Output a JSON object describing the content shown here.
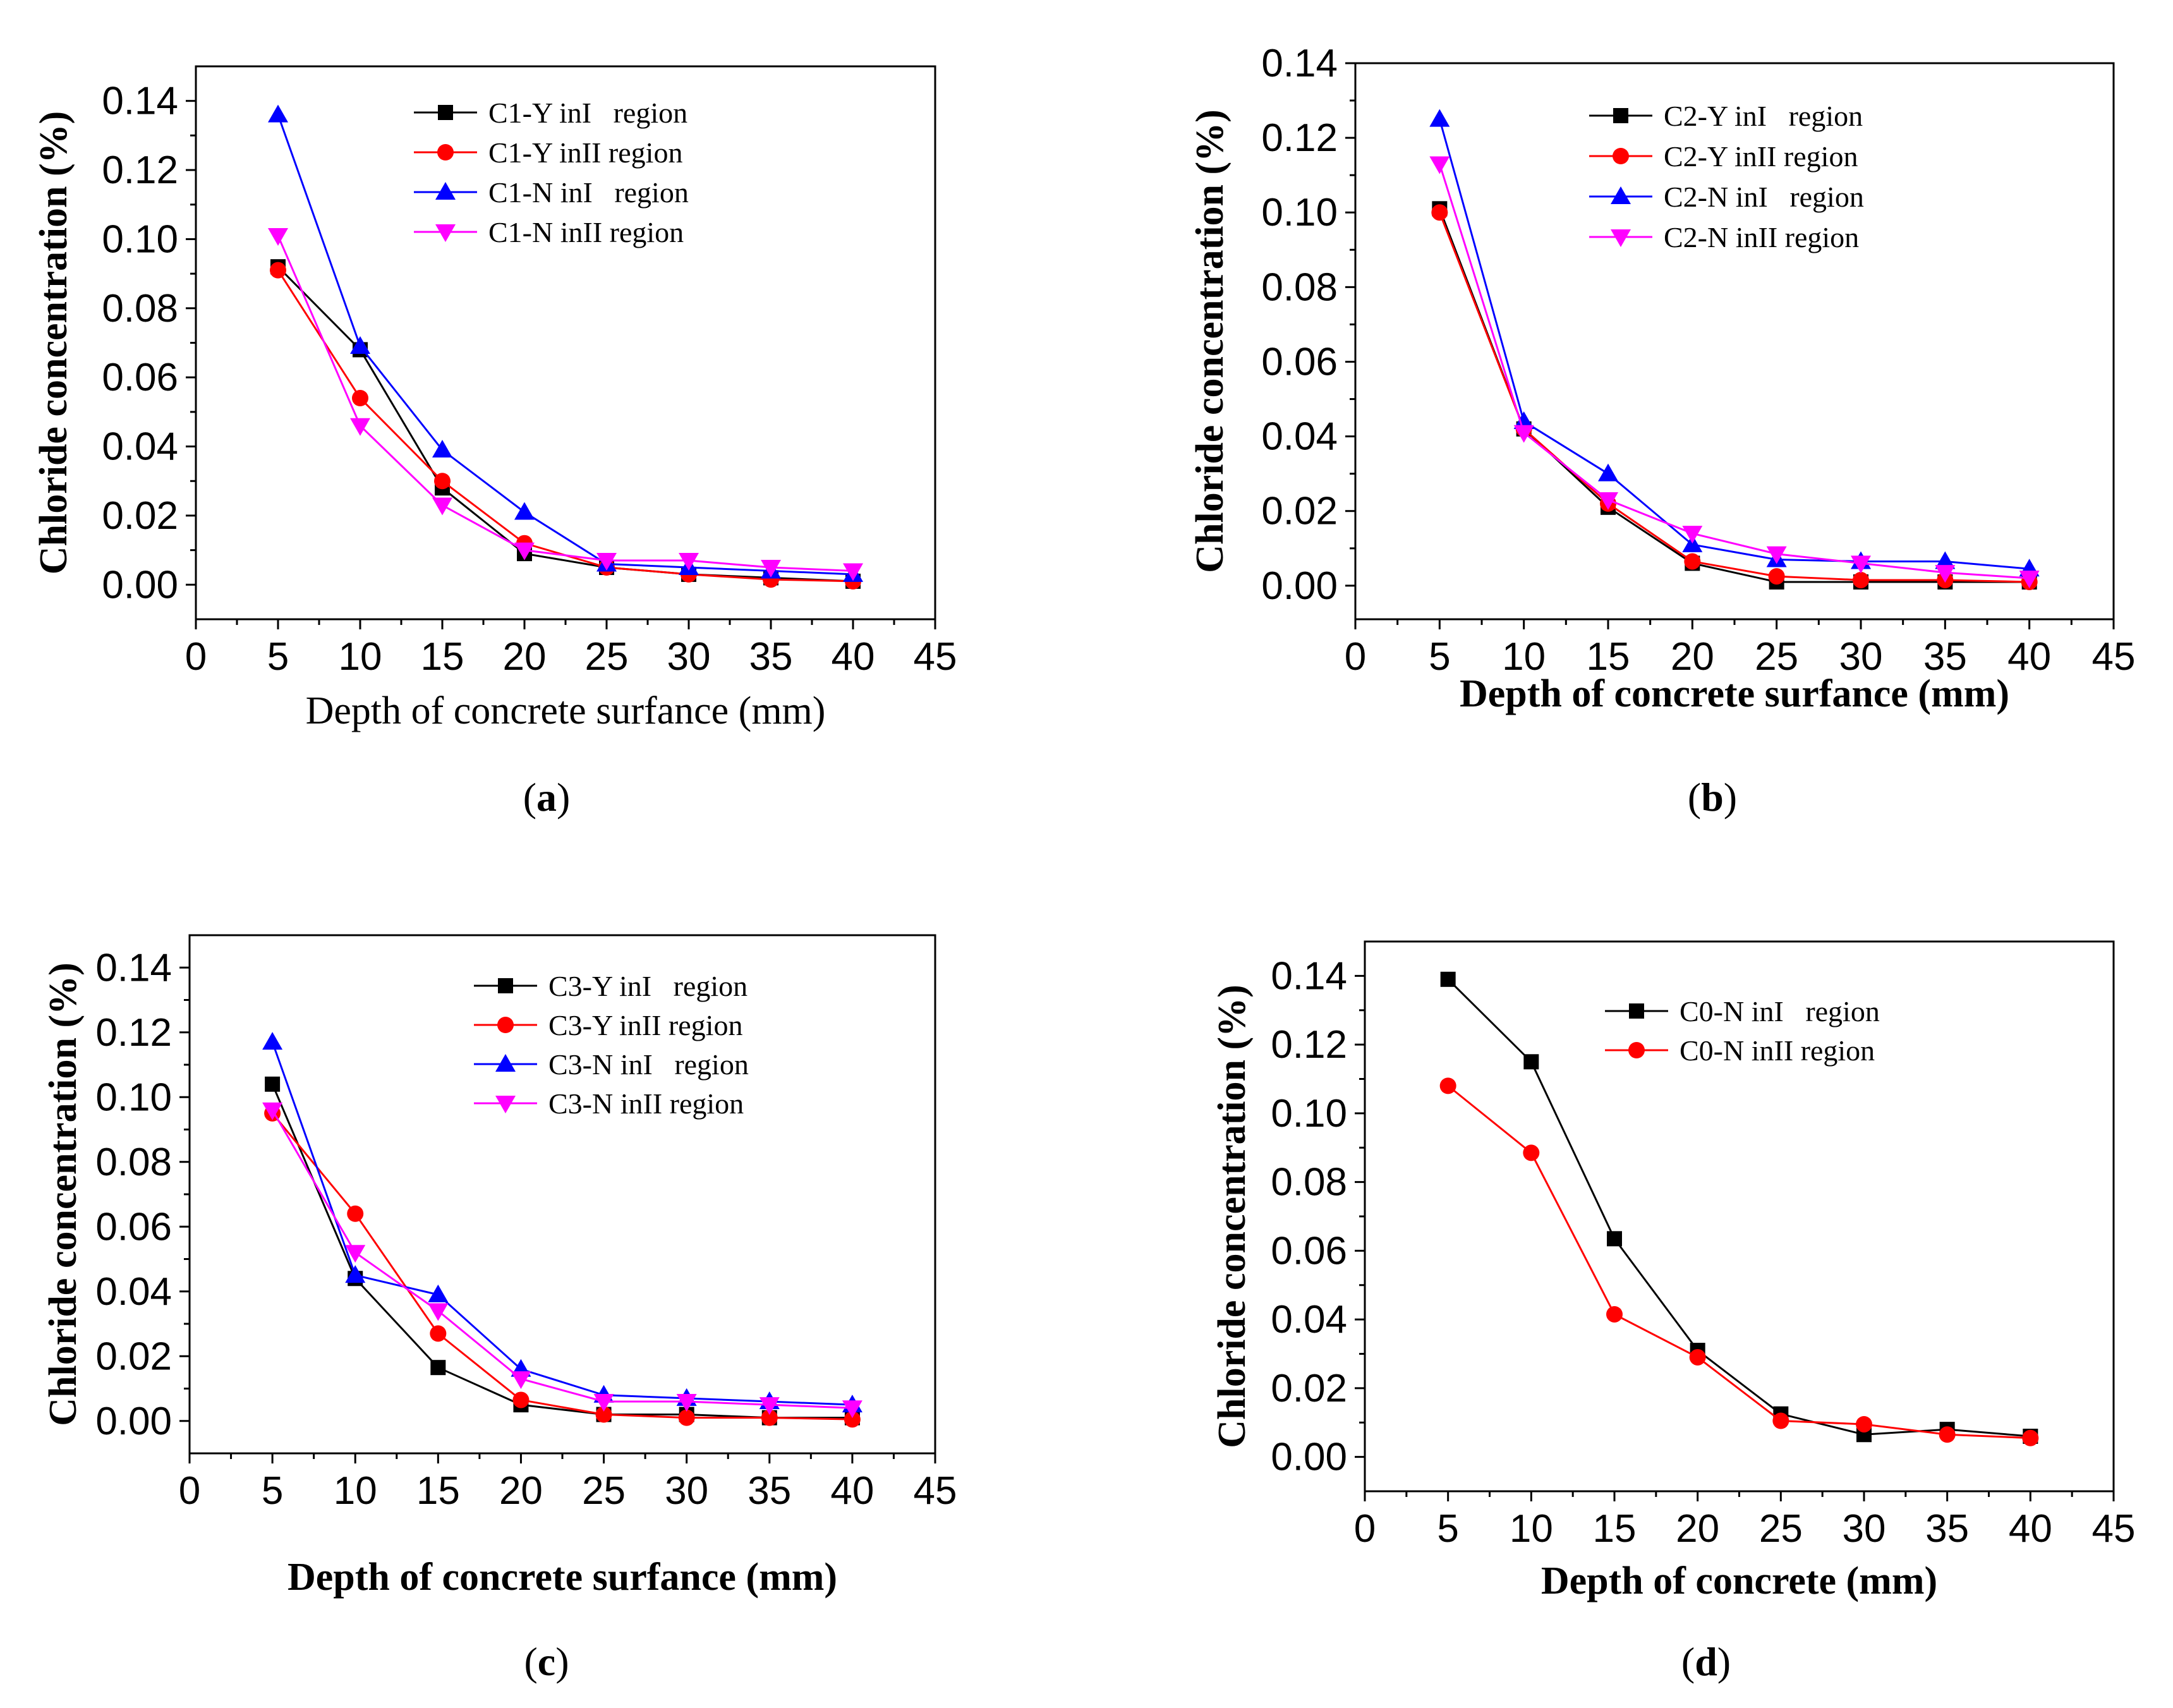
{
  "chart_data": [
    {
      "id": "a",
      "type": "line",
      "caption": "a",
      "xlabel": "Depth of concrete surfance (mm)",
      "ylabel": "Chloride concentration (%)",
      "xticks": [
        "0",
        "5",
        "10",
        "15",
        "20",
        "25",
        "30",
        "35",
        "40",
        "45"
      ],
      "yticks": [
        "0.00",
        "0.02",
        "0.04",
        "0.06",
        "0.08",
        "0.10",
        "0.12",
        "0.14"
      ],
      "xlim": [
        0,
        45
      ],
      "ylim": [
        -0.01,
        0.15
      ],
      "legend_position": "top-center",
      "x": [
        5,
        10,
        15,
        20,
        25,
        30,
        35,
        40
      ],
      "series": [
        {
          "name": "C1-Y inI   region",
          "color": "#000000",
          "marker": "square",
          "values": [
            0.092,
            0.068,
            0.028,
            0.009,
            0.005,
            0.003,
            0.002,
            0.001
          ]
        },
        {
          "name": "C1-Y inII region",
          "color": "#ff0000",
          "marker": "circle",
          "values": [
            0.091,
            0.054,
            0.03,
            0.012,
            0.005,
            0.003,
            0.0015,
            0.001
          ]
        },
        {
          "name": "C1-N inI   region",
          "color": "#0000ff",
          "marker": "triangle-up",
          "values": [
            0.136,
            0.069,
            0.039,
            0.021,
            0.006,
            0.005,
            0.004,
            0.003
          ]
        },
        {
          "name": "C1-N inII region",
          "color": "#ff00ff",
          "marker": "triangle-down",
          "values": [
            0.101,
            0.046,
            0.023,
            0.01,
            0.007,
            0.007,
            0.005,
            0.004
          ]
        }
      ]
    },
    {
      "id": "b",
      "type": "line",
      "caption": "b",
      "xlabel": "Depth of concrete surfance (mm)",
      "ylabel": "Chloride concentration (%)",
      "xticks": [
        "0",
        "5",
        "10",
        "15",
        "20",
        "25",
        "30",
        "35",
        "40",
        "45"
      ],
      "yticks": [
        "0.00",
        "0.02",
        "0.04",
        "0.06",
        "0.08",
        "0.10",
        "0.12",
        "0.14"
      ],
      "xlim": [
        0,
        45
      ],
      "ylim": [
        -0.009,
        0.14
      ],
      "legend_position": "top-center",
      "x": [
        5,
        10,
        15,
        20,
        25,
        30,
        35,
        40
      ],
      "series": [
        {
          "name": "C2-Y inI   region",
          "color": "#000000",
          "marker": "square",
          "values": [
            0.101,
            0.042,
            0.021,
            0.006,
            0.001,
            0.001,
            0.001,
            0.001
          ]
        },
        {
          "name": "C2-Y inII region",
          "color": "#ff0000",
          "marker": "circle",
          "values": [
            0.1,
            0.042,
            0.022,
            0.0065,
            0.0025,
            0.0015,
            0.0015,
            0.001
          ]
        },
        {
          "name": "C2-N inI   region",
          "color": "#0000ff",
          "marker": "triangle-up",
          "values": [
            0.125,
            0.044,
            0.03,
            0.011,
            0.007,
            0.0065,
            0.0065,
            0.0045
          ]
        },
        {
          "name": "C2-N inII region",
          "color": "#ff00ff",
          "marker": "triangle-down",
          "values": [
            0.113,
            0.041,
            0.023,
            0.014,
            0.0085,
            0.006,
            0.0035,
            0.002
          ]
        }
      ]
    },
    {
      "id": "c",
      "type": "line",
      "caption": "c",
      "xlabel": "Depth of concrete surfance (mm)",
      "ylabel": "Chloride concentration (%)",
      "xticks": [
        "0",
        "5",
        "10",
        "15",
        "20",
        "25",
        "30",
        "35",
        "40",
        "45"
      ],
      "yticks": [
        "0.00",
        "0.02",
        "0.04",
        "0.06",
        "0.08",
        "0.10",
        "0.12",
        "0.14"
      ],
      "xlim": [
        0,
        45
      ],
      "ylim": [
        -0.01,
        0.15
      ],
      "legend_position": "top-center",
      "x": [
        5,
        10,
        15,
        20,
        25,
        30,
        35,
        40
      ],
      "series": [
        {
          "name": "C3-Y inI   region",
          "color": "#000000",
          "marker": "square",
          "values": [
            0.104,
            0.044,
            0.0165,
            0.005,
            0.002,
            0.002,
            0.001,
            0.001
          ]
        },
        {
          "name": "C3-Y inII region",
          "color": "#ff0000",
          "marker": "circle",
          "values": [
            0.095,
            0.064,
            0.027,
            0.0065,
            0.002,
            0.001,
            0.001,
            0.0005
          ]
        },
        {
          "name": "C3-N inI   region",
          "color": "#0000ff",
          "marker": "triangle-up",
          "values": [
            0.117,
            0.045,
            0.039,
            0.016,
            0.008,
            0.007,
            0.006,
            0.005
          ]
        },
        {
          "name": "C3-N inII region",
          "color": "#ff00ff",
          "marker": "triangle-down",
          "values": [
            0.096,
            0.052,
            0.034,
            0.013,
            0.006,
            0.006,
            0.005,
            0.004
          ]
        }
      ]
    },
    {
      "id": "d",
      "type": "line",
      "caption": "d",
      "xlabel": "Depth of concrete  (mm)",
      "ylabel": "Chloride concentration (%)",
      "xticks": [
        "0",
        "5",
        "10",
        "15",
        "20",
        "25",
        "30",
        "35",
        "40",
        "45"
      ],
      "yticks": [
        "0.00",
        "0.02",
        "0.04",
        "0.06",
        "0.08",
        "0.10",
        "0.12",
        "0.14"
      ],
      "xlim": [
        0,
        45
      ],
      "ylim": [
        -0.01,
        0.15
      ],
      "legend_position": "top-center",
      "x": [
        5,
        10,
        15,
        20,
        25,
        30,
        35,
        40
      ],
      "series": [
        {
          "name": "C0-N inI   region",
          "color": "#000000",
          "marker": "square",
          "values": [
            0.139,
            0.115,
            0.0635,
            0.031,
            0.0125,
            0.0065,
            0.008,
            0.006
          ]
        },
        {
          "name": "C0-N inII region",
          "color": "#ff0000",
          "marker": "circle",
          "values": [
            0.108,
            0.0885,
            0.0415,
            0.029,
            0.0105,
            0.0095,
            0.0065,
            0.0055
          ]
        }
      ]
    }
  ]
}
